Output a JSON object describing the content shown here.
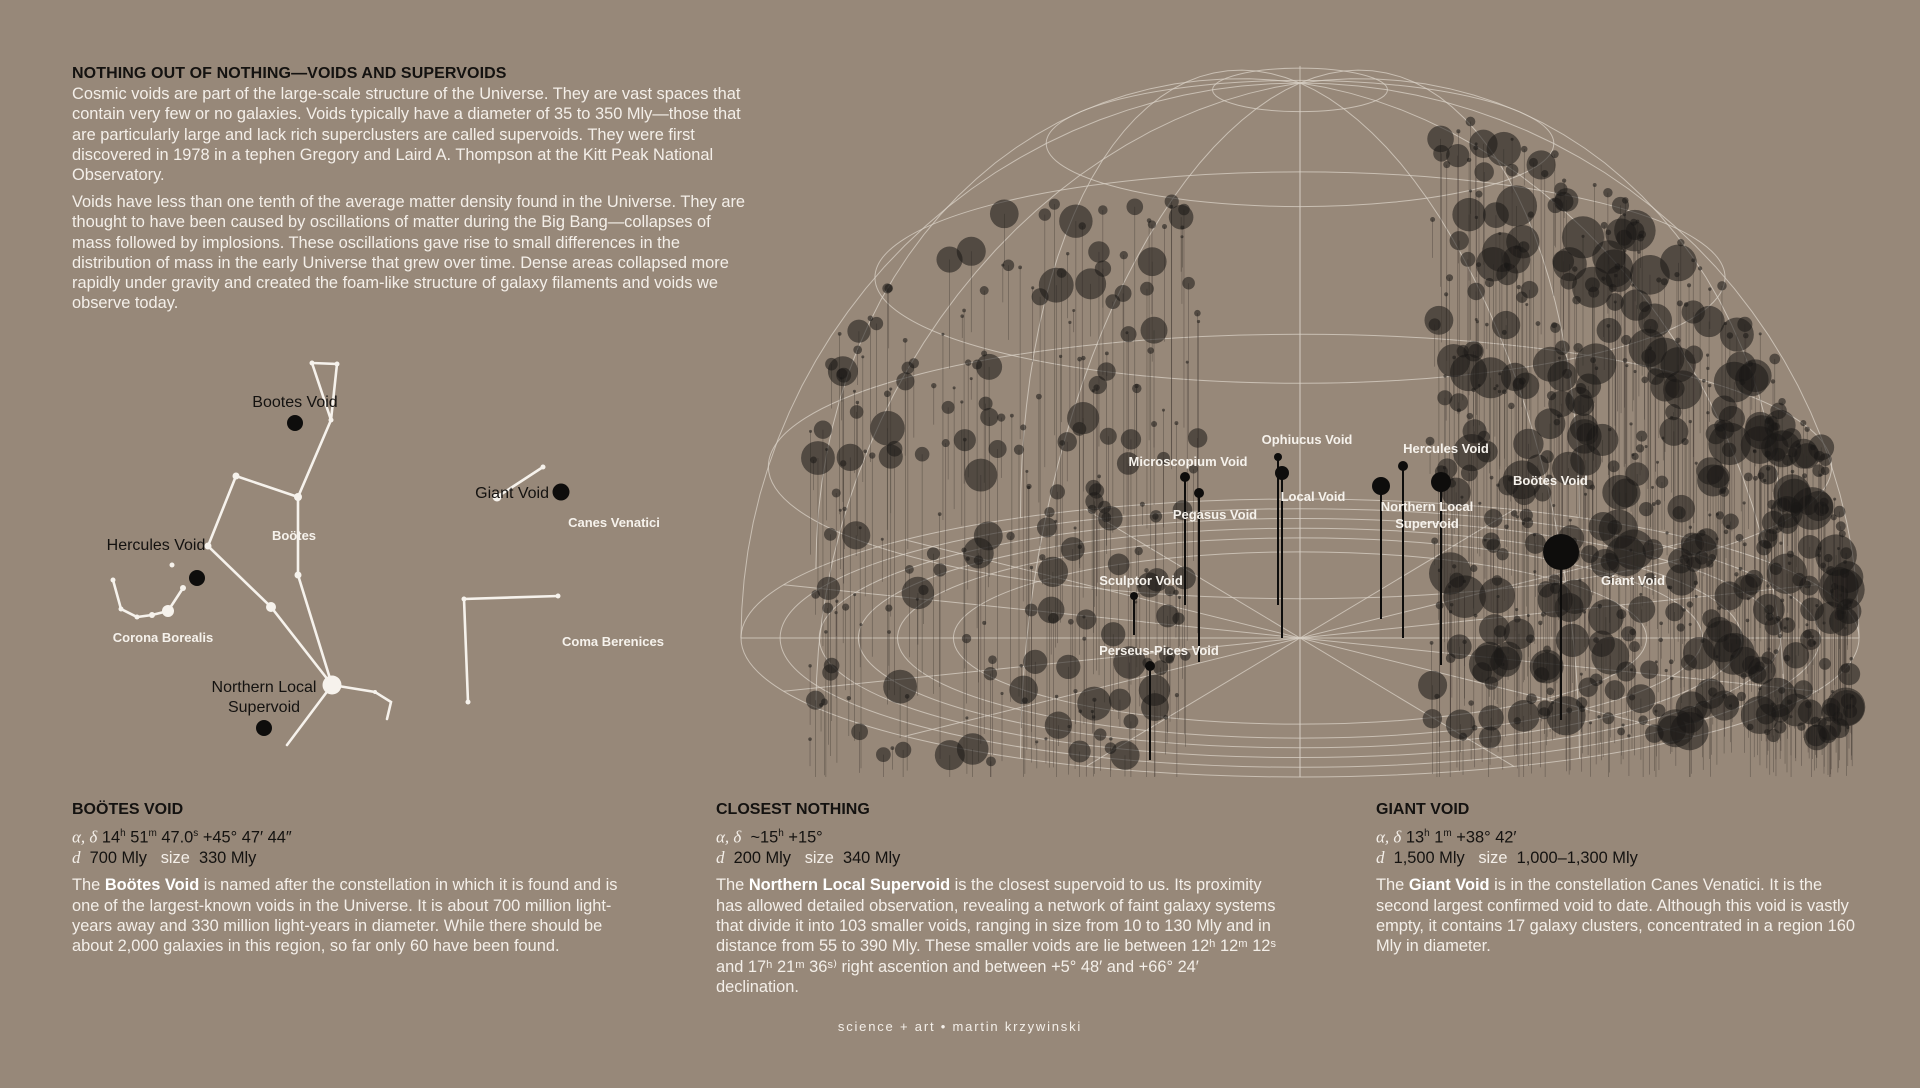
{
  "intro": {
    "title": "NOTHING OUT OF NOTHING—VOIDS AND SUPERVOIDS",
    "paragraphs": [
      "Cosmic voids are part of the large-scale structure of the Universe. They are vast spaces that contain very few or no galaxies. Voids typically have a diameter of 35 to 350 Mly—those that are particularly large and lack rich superclusters are called supervoids. They were first discovered in 1978 in a tephen Gregory and Laird A. Thompson at the Kitt Peak National Observatory.",
      "Voids have less than one tenth of the average matter density found in the Universe. They are thought to have been caused by oscillations of matter during the Big Bang—collapses of mass followed by implosions. These oscillations gave rise to small differences in the distribution of mass in the early Universe that grew over time. Dense areas collapsed more rapidly under gravity and created the foam-like structure of galaxy filaments and voids we observe today."
    ]
  },
  "sky_map": {
    "constellations": [
      "Boötes",
      "Corona Borealis",
      "Canes Venatici",
      "Coma Berenices"
    ],
    "voids": [
      "Bootes Void",
      "Giant Void",
      "Hercules Void",
      "Northern Local",
      "Supervoid"
    ]
  },
  "dome": {
    "void_labels": {
      "microscopium": "Microscopium Void",
      "pegasus": "Pegasus Void",
      "ophiucus": "Ophiucus Void",
      "local": "Local Void",
      "hercules": "Hercules Void",
      "northern_1": "Northern Local",
      "northern_2": "Supervoid",
      "bootes": "Boötes Void",
      "giant": "Giant Void",
      "sculptor": "Sculptor Void",
      "perseus": "Perseus-Pices Void"
    }
  },
  "sections": {
    "bootes": {
      "title": "BOÖTES VOID",
      "coord_label": "α, δ",
      "ra_h": "14",
      "ra_m": "51",
      "ra_s": "47.0",
      "dec": "+45° 47′ 44″",
      "d_label": "d",
      "distance": "700 Mly",
      "size_label": "size",
      "size": "330 Mly",
      "desc_pre": "The ",
      "desc_bold": "Boötes Void",
      "desc_post": " is named after the constellation in which it is found and is one of the largest-known voids in the Universe. It is about 700 million light-years away and 330 million light-years in diameter. While there should be about 2,000 galaxies in this region, so far only 60 have been found."
    },
    "closest": {
      "title": "CLOSEST NOTHING",
      "coord_label": "α, δ",
      "ra": "~15",
      "dec": "+15°",
      "d_label": "d",
      "distance": "200 Mly",
      "size_label": "size",
      "size": "340 Mly",
      "desc_pre": "The ",
      "desc_bold": "Northern Local Supervoid",
      "desc_post": " is the closest supervoid to us. Its proximity has allowed detailed observation, revealing a network of faint galaxy systems that divide it into 103 smaller voids, ranging in size from 10 to 130 Mly and in distance from 55 to 390 Mly. These smaller voids are lie between 12ʰ 12ᵐ 12ˢ and  17ʰ 21ᵐ 36ˢ⁾ right ascention and between +5° 48′ and +66° 24′ declination."
    },
    "giant": {
      "title": "GIANT VOID",
      "coord_label": "α, δ",
      "ra_h": "13",
      "ra_m": "1",
      "dec": "+38° 42′",
      "d_label": "d",
      "distance": "1,500 Mly",
      "size_label": "size",
      "size": "1,000–1,300 Mly",
      "desc_pre": "The ",
      "desc_bold": "Giant Void",
      "desc_post": " is in the constellation Canes Venatici. It is the second largest confirmed void to date. Although this void is vastly empty, it contains 17 galaxy clusters, concentrated in a region 160 Mly in diameter."
    }
  },
  "footer": "science + art  •  martin krzywinski",
  "colors": {
    "background": "#978879",
    "ink": "#141210",
    "light": "#f4efe9",
    "galaxy": "#1a1816"
  }
}
